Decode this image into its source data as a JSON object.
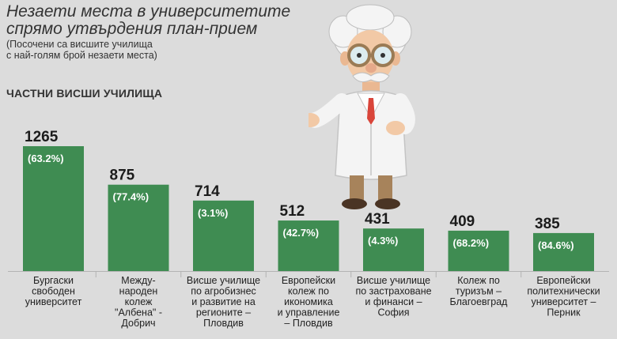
{
  "title_lines": [
    "Незаети места в университетите",
    "спрямо утвърдения план-прием"
  ],
  "subtitle_lines": [
    "(Посочени са висшите училища",
    "с най-голям брой незаети места)"
  ],
  "section_label": "ЧАСТНИ ВИСШИ УЧИЛИЩА",
  "colors": {
    "bar": "#3f8c52",
    "background": "#dcdcdc"
  },
  "chart_data": {
    "type": "bar",
    "title": "Незаети места в университетите спрямо утвърдения план-прием",
    "categories": [
      [
        "Бургаски",
        "свободен",
        "университет"
      ],
      [
        "Между-",
        "народен",
        "колеж",
        "\"Албена\" -",
        "Добрич"
      ],
      [
        "Висше училище",
        "по агробизнес",
        "и развитие на",
        "регионите –",
        "Пловдив"
      ],
      [
        "Европейски",
        "колеж по",
        "икономика",
        "и управление",
        "– Пловдив"
      ],
      [
        "Висше училище",
        "по застраховане",
        "и финанси –",
        "София"
      ],
      [
        "Колеж по",
        "туризъм –",
        "Благоевград"
      ],
      [
        "Европейски",
        "политехнически",
        "университет –",
        "Перник"
      ]
    ],
    "values": [
      1265,
      875,
      714,
      512,
      431,
      409,
      385
    ],
    "percent_labels": [
      "(63.2%)",
      "(77.4%)",
      "(3.1%)",
      "(42.7%)",
      "(4.3%)",
      "(68.2%)",
      "(84.6%)"
    ],
    "xlabel": "",
    "ylabel": "",
    "ylim": [
      0,
      1265
    ],
    "grid": false,
    "legend": "none"
  }
}
